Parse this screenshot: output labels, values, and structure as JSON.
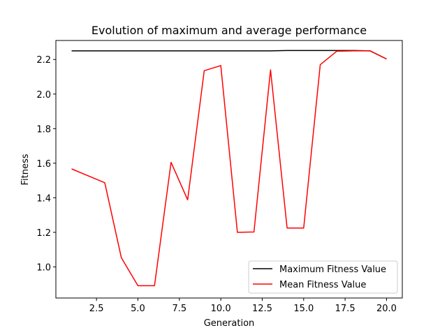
{
  "chart_data": {
    "type": "line",
    "title": "Evolution of maximum and average performance",
    "xlabel": "Generation",
    "ylabel": "Fitness",
    "xlim": [
      0.05,
      20.95
    ],
    "ylim": [
      0.82,
      2.31
    ],
    "xticks": [
      2.5,
      5.0,
      7.5,
      10.0,
      12.5,
      15.0,
      17.5,
      20.0
    ],
    "xtick_labels": [
      "2.5",
      "5.0",
      "7.5",
      "10.0",
      "12.5",
      "15.0",
      "17.5",
      "20.0"
    ],
    "yticks": [
      1.0,
      1.2,
      1.4,
      1.6,
      1.8,
      2.0,
      2.2
    ],
    "ytick_labels": [
      "1.0",
      "1.2",
      "1.4",
      "1.6",
      "1.8",
      "2.0",
      "2.2"
    ],
    "grid": false,
    "legend_position": "lower-right",
    "x": [
      1,
      2,
      3,
      4,
      5,
      6,
      7,
      8,
      9,
      10,
      11,
      12,
      13,
      14,
      15,
      16,
      17,
      18,
      19,
      20
    ],
    "series": [
      {
        "name": "Maximum Fitness Value",
        "color": "#000000",
        "values": [
          2.25,
          2.25,
          2.25,
          2.25,
          2.25,
          2.25,
          2.25,
          2.25,
          2.25,
          2.25,
          2.25,
          2.25,
          2.25,
          2.252,
          2.252,
          2.252,
          2.252,
          2.252,
          2.25,
          2.203
        ]
      },
      {
        "name": "Mean Fitness Value",
        "color": "#ff0000",
        "values": [
          1.567,
          1.527,
          1.487,
          1.053,
          0.891,
          0.891,
          1.605,
          1.388,
          2.135,
          2.165,
          1.2,
          1.202,
          2.14,
          1.225,
          1.225,
          2.17,
          2.248,
          2.25,
          2.25,
          2.203
        ]
      }
    ]
  }
}
